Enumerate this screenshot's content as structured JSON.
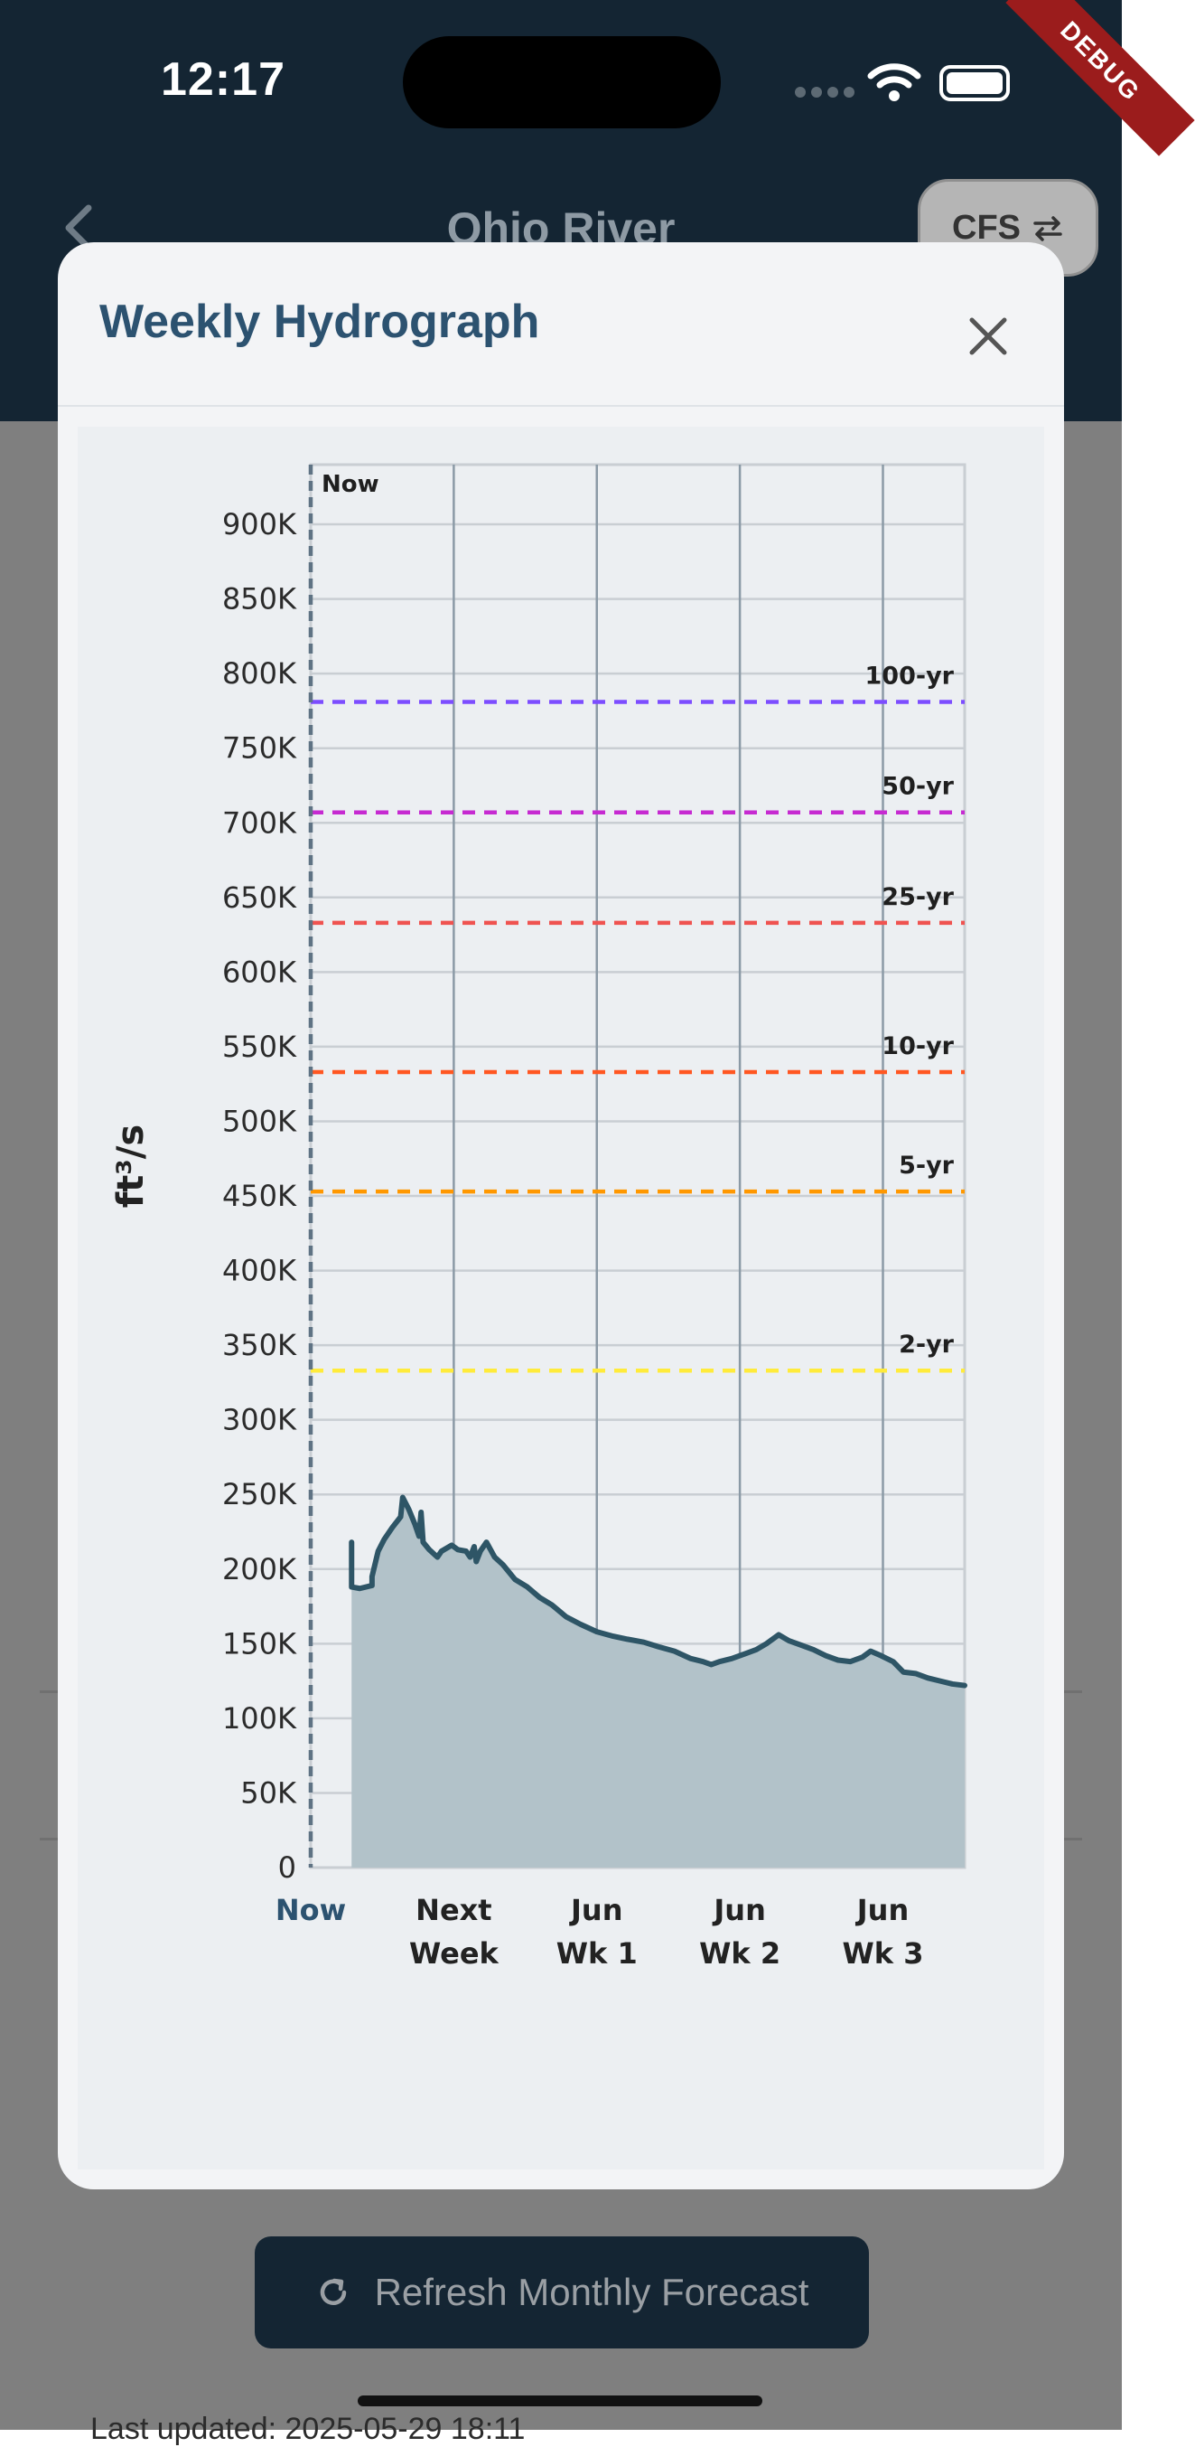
{
  "status_bar": {
    "time": "12:17",
    "debug_label": "DEBUG"
  },
  "app_bar": {
    "title": "Ohio River",
    "units_button_label": "CFS"
  },
  "modal": {
    "title": "Weekly Hydrograph"
  },
  "footer": {
    "refresh_button_label": "Refresh Monthly Forecast",
    "updated_text": "Last updated: 2025-05-29 18:11"
  },
  "chart_data": {
    "type": "area",
    "ylabel": "ft³/s",
    "y_unit": "cfs",
    "ylim": [
      0,
      940000
    ],
    "y_ticks": [
      0,
      50000,
      100000,
      150000,
      200000,
      250000,
      300000,
      350000,
      400000,
      450000,
      500000,
      550000,
      600000,
      650000,
      700000,
      750000,
      800000,
      850000,
      900000
    ],
    "y_tick_labels": [
      "0",
      "50K",
      "100K",
      "150K",
      "200K",
      "250K",
      "300K",
      "350K",
      "400K",
      "450K",
      "500K",
      "550K",
      "600K",
      "650K",
      "700K",
      "750K",
      "800K",
      "850K",
      "900K"
    ],
    "x_ticks": [
      {
        "label": [
          "Now"
        ],
        "day": 0,
        "highlight": true
      },
      {
        "label": [
          "Next",
          "Week"
        ],
        "day": 7
      },
      {
        "label": [
          "Jun",
          "Wk 1"
        ],
        "day": 14
      },
      {
        "label": [
          "Jun",
          "Wk 2"
        ],
        "day": 21
      },
      {
        "label": [
          "Jun",
          "Wk 3"
        ],
        "day": 28
      }
    ],
    "now_marker": {
      "label": "Now",
      "day": 0
    },
    "x_range_days": [
      0,
      32
    ],
    "thresholds": [
      {
        "label": "2-yr",
        "value": 333000,
        "color": "#ffeb3b"
      },
      {
        "label": "5-yr",
        "value": 453000,
        "color": "#ff9800"
      },
      {
        "label": "10-yr",
        "value": 533000,
        "color": "#ff5722"
      },
      {
        "label": "25-yr",
        "value": 633000,
        "color": "#ef5350"
      },
      {
        "label": "50-yr",
        "value": 707000,
        "color": "#c62ad1"
      },
      {
        "label": "100-yr",
        "value": 781000,
        "color": "#7c4dff"
      }
    ],
    "series": [
      {
        "color": "#2e5566",
        "fill": "#b2c2c9",
        "points": [
          [
            2.0,
            218000
          ],
          [
            2.0,
            188000
          ],
          [
            2.4,
            187000
          ],
          [
            3.0,
            189000
          ],
          [
            3.0,
            195000
          ],
          [
            3.3,
            212000
          ],
          [
            3.6,
            220000
          ],
          [
            4.0,
            228000
          ],
          [
            4.4,
            235000
          ],
          [
            4.5,
            248000
          ],
          [
            4.8,
            240000
          ],
          [
            5.1,
            230000
          ],
          [
            5.3,
            222000
          ],
          [
            5.4,
            238000
          ],
          [
            5.5,
            218000
          ],
          [
            5.8,
            213000
          ],
          [
            6.2,
            208000
          ],
          [
            6.4,
            212000
          ],
          [
            6.9,
            216000
          ],
          [
            7.2,
            213000
          ],
          [
            7.6,
            212000
          ],
          [
            7.8,
            208000
          ],
          [
            8.0,
            215000
          ],
          [
            8.1,
            205000
          ],
          [
            8.3,
            212000
          ],
          [
            8.6,
            218000
          ],
          [
            9.0,
            208000
          ],
          [
            9.4,
            203000
          ],
          [
            10.0,
            193000
          ],
          [
            10.6,
            188000
          ],
          [
            11.2,
            181000
          ],
          [
            11.8,
            176000
          ],
          [
            12.5,
            168000
          ],
          [
            13.2,
            163000
          ],
          [
            14.0,
            158000
          ],
          [
            14.8,
            155000
          ],
          [
            15.5,
            153000
          ],
          [
            16.3,
            151000
          ],
          [
            17.0,
            148000
          ],
          [
            17.8,
            145000
          ],
          [
            18.6,
            140000
          ],
          [
            19.2,
            138000
          ],
          [
            19.6,
            136000
          ],
          [
            20.0,
            138000
          ],
          [
            20.6,
            140000
          ],
          [
            21.2,
            143000
          ],
          [
            21.8,
            146000
          ],
          [
            22.3,
            150000
          ],
          [
            22.9,
            156000
          ],
          [
            23.4,
            152000
          ],
          [
            24.0,
            149000
          ],
          [
            24.6,
            146000
          ],
          [
            25.2,
            142000
          ],
          [
            25.8,
            139000
          ],
          [
            26.4,
            138000
          ],
          [
            27.0,
            141000
          ],
          [
            27.4,
            145000
          ],
          [
            27.9,
            142000
          ],
          [
            28.5,
            138000
          ],
          [
            29.0,
            131000
          ],
          [
            29.6,
            130000
          ],
          [
            30.2,
            127000
          ],
          [
            30.8,
            125000
          ],
          [
            31.4,
            123000
          ],
          [
            32.0,
            122000
          ]
        ]
      }
    ]
  }
}
